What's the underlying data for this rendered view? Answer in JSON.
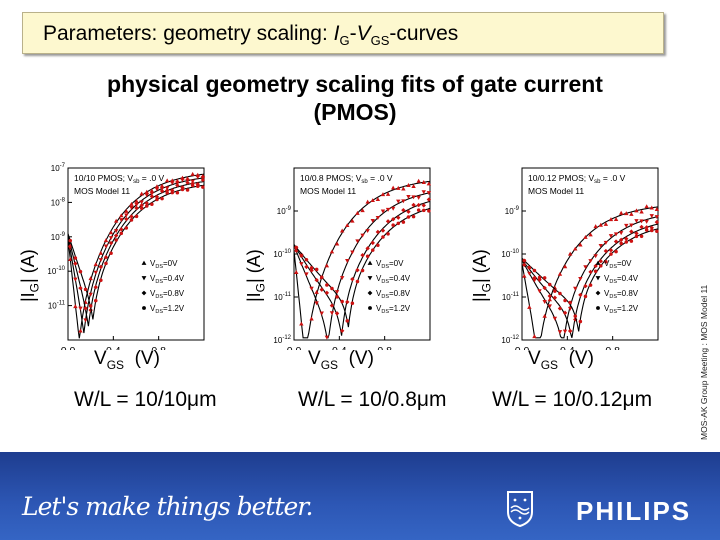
{
  "slide": {
    "title_prefix": "Parameters: geometry scaling: ",
    "title_ig": "I",
    "title_ig_sub": "G",
    "title_dash": "-",
    "title_vgs": "V",
    "title_vgs_sub": "GS",
    "title_suffix": "-curves",
    "subtitle_line1": "physical geometry scaling fits of gate current",
    "subtitle_line2": "(PMOS)",
    "side_note": "MOS-AK Group Meeting : MOS Model 11",
    "slogan": "Let's make things better.",
    "brand": "PHILIPS",
    "colors": {
      "footer": "#2d57b5",
      "title_bg": "#fdf8cf",
      "measured": "#cc1111",
      "model": "#000000"
    }
  },
  "chart_data": [
    {
      "type": "line",
      "panel_header": "10/10 PMOS; V",
      "panel_header_sub": "sb",
      "panel_header_tail": " = .0 V",
      "model_label": "MOS Model 11",
      "ylabel": "|I",
      "ylabel_sub": "G",
      "ylabel_unit": "| (A)",
      "xlabel": "V",
      "xlabel_sub": "GS",
      "xlabel_unit": "(V)",
      "caption": "W/L = 10/10μm",
      "xlim": [
        0.0,
        1.2
      ],
      "ylim_exp": [
        -12,
        -7
      ],
      "xticks": [
        "0.0",
        "0.4",
        "0.8"
      ],
      "yticks": [
        {
          "exp": -7,
          "label": "10"
        },
        {
          "exp": -8,
          "label": "10"
        },
        {
          "exp": -9,
          "label": "10"
        },
        {
          "exp": -10,
          "label": "10"
        },
        {
          "exp": -11,
          "label": "10"
        }
      ],
      "ytick_sup": [
        "-7",
        "-8",
        "-9",
        "-10",
        "-11"
      ],
      "legend_position": "lower-right",
      "series": [
        {
          "name": "V",
          "name_sub": "DS",
          "name_tail": "=0V",
          "marker": "triangle-up",
          "vmin": 0.1,
          "a": -7.05,
          "b": -11.4
        },
        {
          "name": "V",
          "name_sub": "DS",
          "name_tail": "=0.4V",
          "marker": "triangle-down",
          "vmin": 0.14,
          "a": -7.15,
          "b": -11.2
        },
        {
          "name": "V",
          "name_sub": "DS",
          "name_tail": "=0.8V",
          "marker": "diamond",
          "vmin": 0.18,
          "a": -7.25,
          "b": -11.0
        },
        {
          "name": "V",
          "name_sub": "DS",
          "name_tail": "=1.2V",
          "marker": "circle",
          "vmin": 0.22,
          "a": -7.35,
          "b": -10.8
        }
      ]
    },
    {
      "type": "line",
      "panel_header": "10/0.8 PMOS; V",
      "panel_header_sub": "sb",
      "panel_header_tail": " = .0 V",
      "model_label": "MOS Model 11",
      "ylabel": "|I",
      "ylabel_sub": "G",
      "ylabel_unit": "| (A)",
      "xlabel": "V",
      "xlabel_sub": "GS",
      "xlabel_unit": "(V)",
      "caption": "W/L = 10/0.8μm",
      "xlim": [
        0.0,
        1.2
      ],
      "ylim_exp": [
        -12,
        -8
      ],
      "xticks": [
        "0.0",
        "0.4",
        "0.8"
      ],
      "yticks": [
        {
          "exp": -9,
          "label": "10"
        },
        {
          "exp": -10,
          "label": "10"
        },
        {
          "exp": -11,
          "label": "10"
        },
        {
          "exp": -12,
          "label": "10"
        }
      ],
      "ytick_sup": [
        "-9",
        "-10",
        "-11",
        "-12"
      ],
      "legend_position": "lower-right",
      "series": [
        {
          "name": "V",
          "name_sub": "DS",
          "name_tail": "=0V",
          "marker": "triangle-up",
          "vmin": 0.1,
          "a": -8.2,
          "b": -11.9
        },
        {
          "name": "V",
          "name_sub": "DS",
          "name_tail": "=0.4V",
          "marker": "triangle-down",
          "vmin": 0.3,
          "a": -8.4,
          "b": -11.5
        },
        {
          "name": "V",
          "name_sub": "DS",
          "name_tail": "=0.8V",
          "marker": "diamond",
          "vmin": 0.42,
          "a": -8.55,
          "b": -11.3
        },
        {
          "name": "V",
          "name_sub": "DS",
          "name_tail": "=1.2V",
          "marker": "circle",
          "vmin": 0.48,
          "a": -8.7,
          "b": -11.1
        }
      ]
    },
    {
      "type": "line",
      "panel_header": "10/0.12 PMOS; V",
      "panel_header_sub": "sb",
      "panel_header_tail": " = .0 V",
      "model_label": "MOS Model 11",
      "ylabel": "|I",
      "ylabel_sub": "G",
      "ylabel_unit": "| (A)",
      "xlabel": "V",
      "xlabel_sub": "GS",
      "xlabel_unit": "(V)",
      "caption": "W/L = 10/0.12μm",
      "xlim": [
        0.0,
        1.2
      ],
      "ylim_exp": [
        -12,
        -8
      ],
      "xticks": [
        "0.0",
        "0.4",
        "0.8"
      ],
      "yticks": [
        {
          "exp": -9,
          "label": "10"
        },
        {
          "exp": -10,
          "label": "10"
        },
        {
          "exp": -11,
          "label": "10"
        },
        {
          "exp": -12,
          "label": "10"
        }
      ],
      "ytick_sup": [
        "-9",
        "-10",
        "-11",
        "-12"
      ],
      "legend_position": "lower-right",
      "series": [
        {
          "name": "V",
          "name_sub": "DS",
          "name_tail": "=0V",
          "marker": "triangle-up",
          "vmin": 0.14,
          "a": -8.8,
          "b": -11.9
        },
        {
          "name": "V",
          "name_sub": "DS",
          "name_tail": "=0.4V",
          "marker": "triangle-down",
          "vmin": 0.36,
          "a": -8.95,
          "b": -11.6
        },
        {
          "name": "V",
          "name_sub": "DS",
          "name_tail": "=0.8V",
          "marker": "diamond",
          "vmin": 0.44,
          "a": -9.1,
          "b": -11.4
        },
        {
          "name": "V",
          "name_sub": "DS",
          "name_tail": "=1.2V",
          "marker": "circle",
          "vmin": 0.5,
          "a": -9.2,
          "b": -11.2
        }
      ]
    }
  ]
}
